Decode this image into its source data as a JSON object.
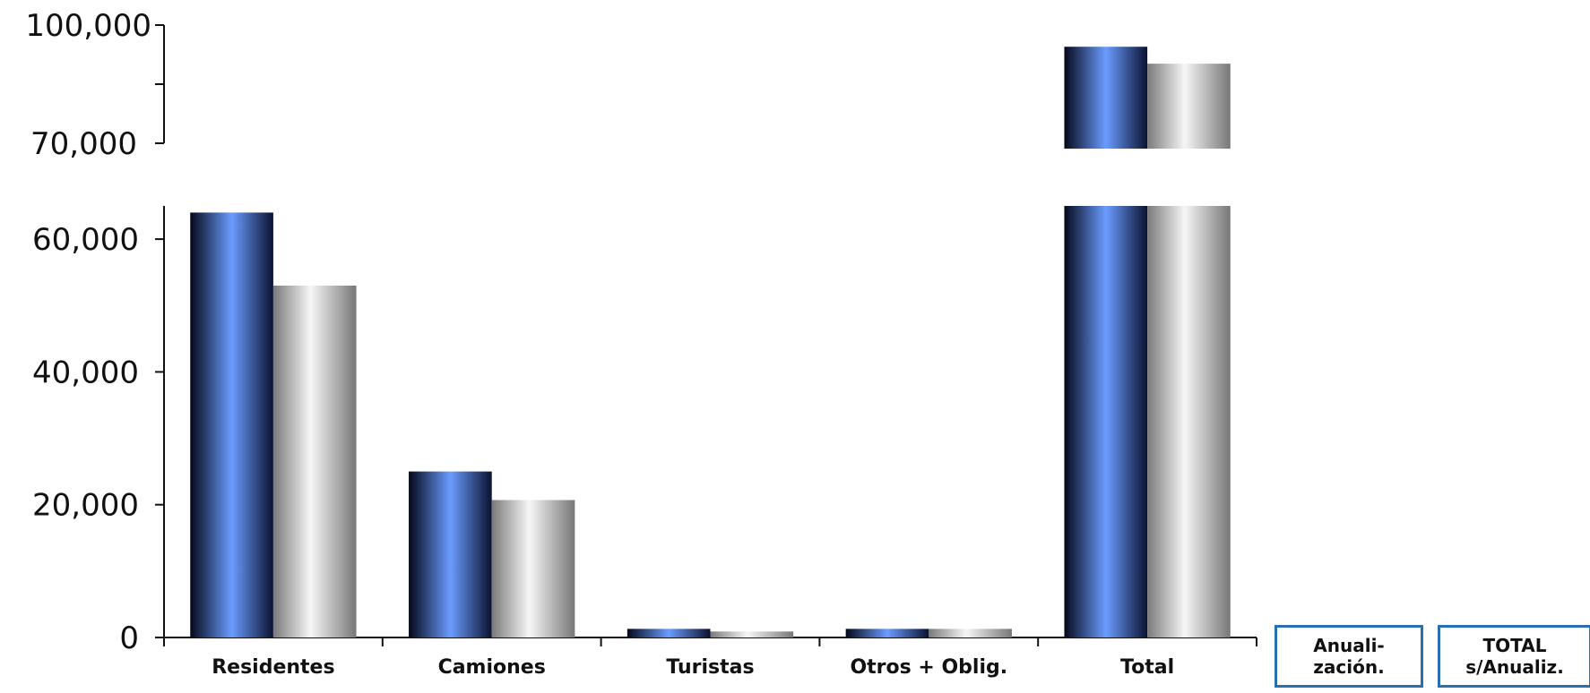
{
  "chart_data": {
    "type": "bar",
    "categories": [
      "Residentes",
      "Camiones",
      "Turistas",
      "Otros + Oblig.",
      "Total"
    ],
    "series": [
      {
        "values": [
          64000,
          25000,
          1300,
          1300,
          94500
        ],
        "color": "blue-gradient"
      },
      {
        "values": [
          53000,
          20700,
          900,
          1300,
          90200
        ],
        "color": "gray-gradient"
      }
    ],
    "axis_break": true,
    "lower_axis": {
      "ylim": [
        0,
        65000
      ],
      "ticks": [
        "0",
        "20,000",
        "40,000",
        "60,000"
      ]
    },
    "upper_axis": {
      "ylim": [
        70000,
        100000
      ],
      "ticks": [
        "70,000",
        "100,000"
      ]
    },
    "grid": false,
    "colors": {
      "blue_dark": "#0a0f24",
      "blue_light": "#6496ff",
      "gray_dark": "#7a7a7a",
      "gray_light": "#f4f4f4"
    }
  },
  "buttons": [
    {
      "line1": "Anuali-",
      "line2": "zación."
    },
    {
      "line1": "TOTAL",
      "line2": "s/Anualiz."
    }
  ]
}
